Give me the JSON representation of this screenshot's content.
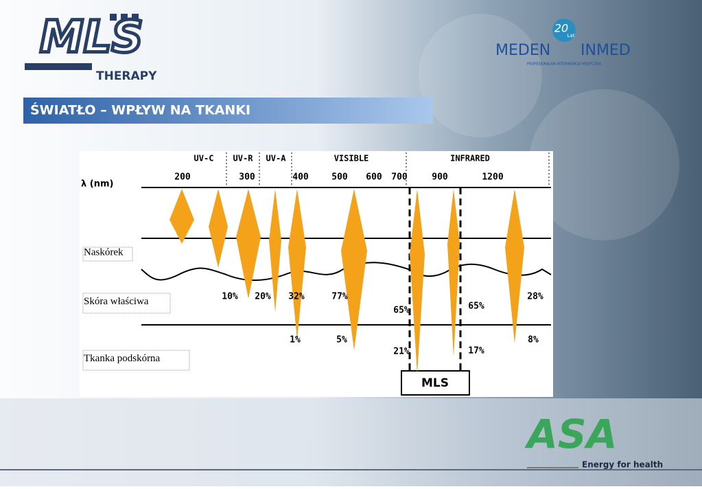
{
  "header": {
    "logo_left": {
      "mark": "MLS",
      "subtitle": "THERAPY"
    },
    "logo_right": {
      "badge_number": "20",
      "badge_text": "Lat",
      "brand_left": "MEDEN",
      "brand_right": "INMED",
      "tagline": "PROFESJONALNA INTERWENCJA MEDYCZNA"
    }
  },
  "title": "ŚWIATŁO – WPŁYW NA TKANKI",
  "diagram": {
    "axis_label": "λ (nm)",
    "bands": [
      "UV-C",
      "UV-R",
      "UV-A",
      "VISIBLE",
      "INFRARED"
    ],
    "wavelengths": [
      "200",
      "300",
      "400",
      "500",
      "600",
      "700",
      "900",
      "1200"
    ],
    "layers": [
      "Naskórek",
      "Skóra właściwa",
      "Tkanka podskórna"
    ],
    "dermis_percent": [
      "10%",
      "20%",
      "32%",
      "77%",
      "65%",
      "65%",
      "28%"
    ],
    "subcutis_percent": [
      "1%",
      "5%",
      "21%",
      "17%",
      "8%"
    ],
    "highlight": "MLS"
  },
  "footer": {
    "logo": "ASA",
    "slogan": "Energy for health"
  }
}
